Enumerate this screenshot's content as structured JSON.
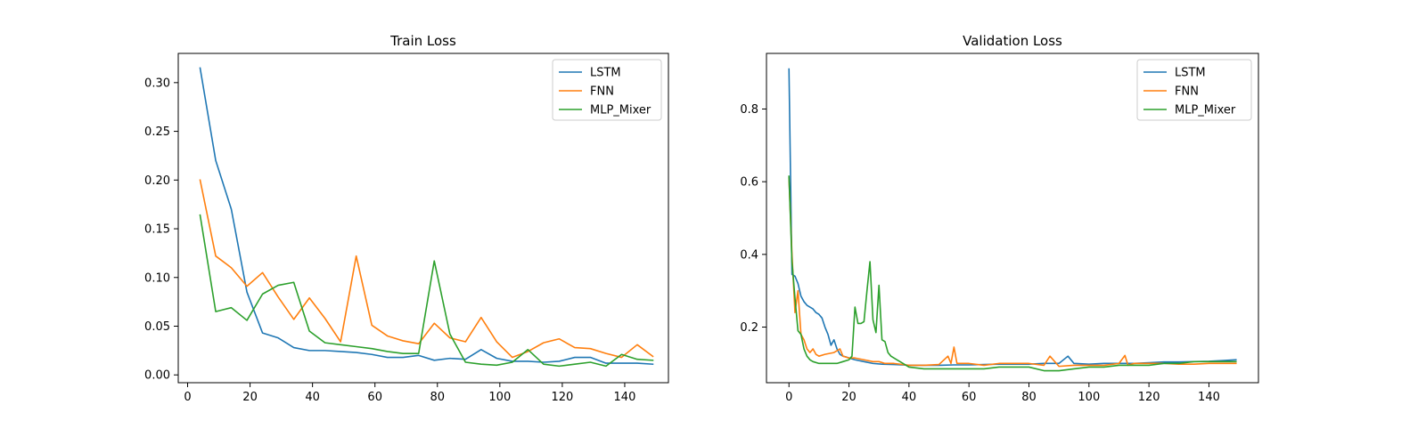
{
  "chart_data": [
    {
      "type": "line",
      "title": "Train Loss",
      "xlabel": "",
      "ylabel": "",
      "xlim": [
        -3,
        154
      ],
      "ylim": [
        -0.008,
        0.33
      ],
      "xticks": [
        0,
        20,
        40,
        60,
        80,
        100,
        120,
        140
      ],
      "xtick_labels": [
        "0",
        "20",
        "40",
        "60",
        "80",
        "100",
        "120",
        "140"
      ],
      "yticks": [
        0.0,
        0.05,
        0.1,
        0.15,
        0.2,
        0.25,
        0.3
      ],
      "ytick_labels": [
        "0.00",
        "0.05",
        "0.10",
        "0.15",
        "0.20",
        "0.25",
        "0.30"
      ],
      "legend_position": "top-right",
      "x": [
        4,
        9,
        14,
        19,
        24,
        29,
        34,
        39,
        44,
        49,
        54,
        59,
        64,
        69,
        74,
        79,
        84,
        89,
        94,
        99,
        104,
        109,
        114,
        119,
        124,
        129,
        134,
        139,
        144,
        149
      ],
      "series": [
        {
          "name": "LSTM",
          "color": "#1f77b4",
          "values": [
            0.315,
            0.22,
            0.17,
            0.085,
            0.043,
            0.038,
            0.028,
            0.025,
            0.025,
            0.024,
            0.023,
            0.021,
            0.018,
            0.018,
            0.02,
            0.015,
            0.017,
            0.016,
            0.026,
            0.017,
            0.014,
            0.014,
            0.013,
            0.014,
            0.018,
            0.018,
            0.012,
            0.012,
            0.012,
            0.011
          ]
        },
        {
          "name": "FNN",
          "color": "#ff7f0e",
          "values": [
            0.2,
            0.122,
            0.11,
            0.091,
            0.105,
            0.08,
            0.057,
            0.079,
            0.058,
            0.034,
            0.122,
            0.051,
            0.04,
            0.035,
            0.032,
            0.053,
            0.038,
            0.034,
            0.059,
            0.034,
            0.018,
            0.024,
            0.033,
            0.037,
            0.028,
            0.027,
            0.022,
            0.018,
            0.031,
            0.019
          ]
        },
        {
          "name": "MLP_Mixer",
          "color": "#2ca02c",
          "values": [
            0.164,
            0.065,
            0.069,
            0.056,
            0.083,
            0.092,
            0.095,
            0.045,
            0.033,
            0.031,
            0.029,
            0.027,
            0.024,
            0.022,
            0.022,
            0.117,
            0.042,
            0.013,
            0.011,
            0.01,
            0.013,
            0.026,
            0.011,
            0.009,
            0.011,
            0.013,
            0.009,
            0.021,
            0.016,
            0.015
          ]
        }
      ]
    },
    {
      "type": "line",
      "title": "Validation Loss",
      "xlabel": "",
      "ylabel": "",
      "xlim": [
        -7.5,
        156.5
      ],
      "ylim": [
        0.047,
        0.953
      ],
      "xticks": [
        0,
        20,
        40,
        60,
        80,
        100,
        120,
        140
      ],
      "xtick_labels": [
        "0",
        "20",
        "40",
        "60",
        "80",
        "100",
        "120",
        "140"
      ],
      "yticks": [
        0.2,
        0.4,
        0.6,
        0.8
      ],
      "ytick_labels": [
        "0.2",
        "0.4",
        "0.6",
        "0.8"
      ],
      "legend_position": "top-right",
      "series": [
        {
          "name": "LSTM",
          "color": "#1f77b4",
          "x": [
            0,
            1,
            2,
            3,
            4,
            5,
            6,
            7,
            8,
            9,
            10,
            11,
            12,
            13,
            14,
            15,
            16,
            17,
            18,
            19,
            20,
            22,
            25,
            28,
            31,
            35,
            40,
            45,
            50,
            55,
            60,
            65,
            70,
            75,
            80,
            85,
            90,
            93,
            95,
            100,
            105,
            110,
            115,
            120,
            125,
            130,
            135,
            140,
            145,
            149
          ],
          "values": [
            0.91,
            0.345,
            0.34,
            0.32,
            0.285,
            0.27,
            0.26,
            0.255,
            0.25,
            0.24,
            0.235,
            0.225,
            0.2,
            0.18,
            0.15,
            0.165,
            0.14,
            0.125,
            0.12,
            0.118,
            0.115,
            0.11,
            0.105,
            0.1,
            0.098,
            0.097,
            0.095,
            0.095,
            0.095,
            0.096,
            0.096,
            0.097,
            0.098,
            0.098,
            0.098,
            0.1,
            0.1,
            0.12,
            0.1,
            0.098,
            0.1,
            0.1,
            0.1,
            0.102,
            0.104,
            0.104,
            0.105,
            0.106,
            0.108,
            0.11
          ]
        },
        {
          "name": "FNN",
          "color": "#ff7f0e",
          "x": [
            0,
            1,
            2,
            3,
            4,
            5,
            6,
            7,
            8,
            9,
            10,
            12,
            15,
            17,
            18,
            20,
            22,
            25,
            28,
            30,
            32,
            35,
            40,
            45,
            50,
            53,
            54,
            55,
            56,
            60,
            65,
            70,
            75,
            80,
            85,
            87,
            90,
            95,
            100,
            105,
            110,
            112,
            113,
            115,
            120,
            125,
            130,
            135,
            140,
            145,
            149
          ],
          "values": [
            0.61,
            0.4,
            0.24,
            0.3,
            0.18,
            0.165,
            0.14,
            0.13,
            0.14,
            0.125,
            0.12,
            0.125,
            0.13,
            0.14,
            0.12,
            0.115,
            0.115,
            0.11,
            0.105,
            0.105,
            0.1,
            0.1,
            0.095,
            0.095,
            0.097,
            0.12,
            0.1,
            0.145,
            0.1,
            0.1,
            0.095,
            0.1,
            0.1,
            0.1,
            0.095,
            0.12,
            0.092,
            0.095,
            0.095,
            0.095,
            0.1,
            0.122,
            0.095,
            0.1,
            0.1,
            0.1,
            0.098,
            0.098,
            0.1,
            0.1,
            0.1
          ]
        },
        {
          "name": "MLP_Mixer",
          "color": "#2ca02c",
          "x": [
            0,
            1,
            2,
            3,
            4,
            5,
            6,
            7,
            8,
            10,
            12,
            14,
            16,
            18,
            20,
            21,
            22,
            23,
            24,
            25,
            26,
            27,
            28,
            29,
            30,
            31,
            32,
            33,
            34,
            36,
            38,
            40,
            45,
            50,
            55,
            60,
            65,
            70,
            75,
            80,
            85,
            90,
            95,
            100,
            105,
            110,
            115,
            120,
            125,
            130,
            135,
            140,
            145,
            149
          ],
          "values": [
            0.615,
            0.38,
            0.28,
            0.19,
            0.18,
            0.14,
            0.12,
            0.11,
            0.105,
            0.1,
            0.1,
            0.1,
            0.1,
            0.105,
            0.11,
            0.12,
            0.255,
            0.21,
            0.21,
            0.215,
            0.3,
            0.38,
            0.22,
            0.185,
            0.315,
            0.165,
            0.16,
            0.13,
            0.12,
            0.11,
            0.1,
            0.09,
            0.085,
            0.085,
            0.085,
            0.085,
            0.085,
            0.09,
            0.09,
            0.09,
            0.08,
            0.08,
            0.085,
            0.09,
            0.09,
            0.095,
            0.095,
            0.095,
            0.1,
            0.1,
            0.105,
            0.105,
            0.105,
            0.105
          ]
        }
      ]
    }
  ]
}
